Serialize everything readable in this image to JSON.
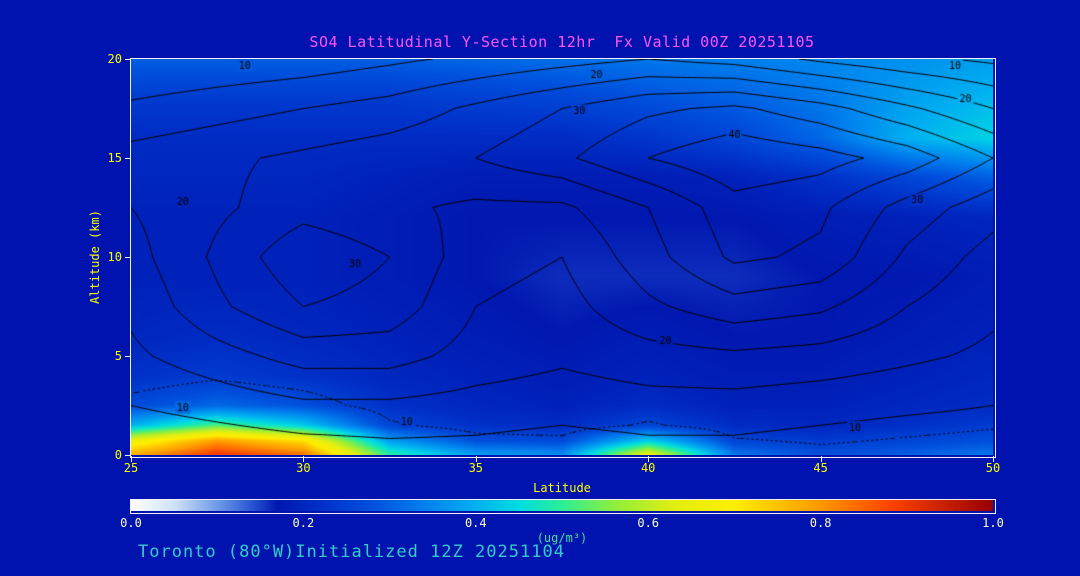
{
  "title": "SO4 Latitudinal Y-Section 12hr  Fx Valid 00Z 20251105",
  "caption": "Toronto (80°W)Initialized 12Z 20251104",
  "colors": {
    "background": "#0013ae",
    "title": "#ff55ff",
    "axis_label": "#ffff00",
    "frame": "#f2f2f2",
    "colorbar_tick_label": "#ffffcc",
    "units_label": "#44dd99",
    "caption": "#33cccc",
    "contour_line": "#000000"
  },
  "chart_data": {
    "type": "heatmap",
    "title": "SO4 Latitudinal Y-Section 12hr  Fx Valid 00Z 20251105",
    "xlabel": "Latitude",
    "ylabel": "Altitude (km)",
    "units_label": "(ug/m³)",
    "xlim": [
      25,
      50
    ],
    "ylim": [
      0,
      20
    ],
    "x_ticks": [
      25,
      30,
      35,
      40,
      45,
      50
    ],
    "y_ticks": [
      0,
      5,
      10,
      15,
      20
    ],
    "colorbar_ticks": [
      "0.0",
      "0.2",
      "0.4",
      "0.6",
      "0.8",
      "1.0"
    ],
    "colormap_stops": [
      [
        0.0,
        "#ffffff"
      ],
      [
        0.05,
        "#cfe2f6"
      ],
      [
        0.1,
        "#6f9ae8"
      ],
      [
        0.14,
        "#2a55d4"
      ],
      [
        0.17,
        "#0018b0"
      ],
      [
        0.22,
        "#0030c8"
      ],
      [
        0.28,
        "#0050dd"
      ],
      [
        0.34,
        "#0080ee"
      ],
      [
        0.4,
        "#00b0f0"
      ],
      [
        0.45,
        "#00dde0"
      ],
      [
        0.5,
        "#2cee96"
      ],
      [
        0.56,
        "#8fee3e"
      ],
      [
        0.63,
        "#e2ee12"
      ],
      [
        0.7,
        "#ffee00"
      ],
      [
        0.8,
        "#ff9900"
      ],
      [
        0.88,
        "#ff4400"
      ],
      [
        1.0,
        "#990000"
      ]
    ],
    "fill_grid": {
      "lats": [
        25,
        27.5,
        30,
        32.5,
        35,
        37.5,
        40,
        42.5,
        45,
        47.5,
        50
      ],
      "alts": [
        0,
        0.7,
        1.5,
        2.5,
        4,
        6,
        9,
        12,
        14,
        16,
        18,
        20
      ],
      "values": [
        [
          0.78,
          0.9,
          0.84,
          0.5,
          0.38,
          0.36,
          0.66,
          0.33,
          0.28,
          0.3,
          0.33
        ],
        [
          0.66,
          0.8,
          0.72,
          0.38,
          0.28,
          0.27,
          0.44,
          0.26,
          0.24,
          0.26,
          0.28
        ],
        [
          0.4,
          0.52,
          0.43,
          0.26,
          0.22,
          0.21,
          0.26,
          0.21,
          0.2,
          0.22,
          0.24
        ],
        [
          0.27,
          0.31,
          0.28,
          0.22,
          0.2,
          0.19,
          0.21,
          0.19,
          0.19,
          0.2,
          0.21
        ],
        [
          0.22,
          0.24,
          0.22,
          0.2,
          0.19,
          0.18,
          0.19,
          0.18,
          0.18,
          0.19,
          0.2
        ],
        [
          0.2,
          0.21,
          0.2,
          0.19,
          0.18,
          0.17,
          0.18,
          0.17,
          0.17,
          0.18,
          0.19
        ],
        [
          0.19,
          0.19,
          0.19,
          0.18,
          0.17,
          0.16,
          0.16,
          0.16,
          0.17,
          0.17,
          0.18
        ],
        [
          0.19,
          0.19,
          0.19,
          0.18,
          0.17,
          0.17,
          0.17,
          0.17,
          0.18,
          0.19,
          0.2
        ],
        [
          0.2,
          0.2,
          0.2,
          0.19,
          0.18,
          0.18,
          0.18,
          0.19,
          0.22,
          0.26,
          0.3
        ],
        [
          0.21,
          0.21,
          0.21,
          0.21,
          0.21,
          0.21,
          0.23,
          0.26,
          0.31,
          0.4,
          0.44
        ],
        [
          0.24,
          0.24,
          0.24,
          0.24,
          0.25,
          0.26,
          0.28,
          0.3,
          0.33,
          0.38,
          0.41
        ],
        [
          0.3,
          0.3,
          0.3,
          0.3,
          0.31,
          0.32,
          0.33,
          0.34,
          0.35,
          0.36,
          0.38
        ]
      ]
    },
    "surface_dotted_level": 0.25,
    "contour_levels": [
      10,
      15,
      20,
      25,
      30,
      35,
      40
    ],
    "contour_grid": {
      "lats": [
        25,
        27.5,
        30,
        32.5,
        35,
        37.5,
        40,
        42.5,
        45,
        47.5,
        50
      ],
      "alts": [
        0,
        2.5,
        5,
        7.5,
        10,
        12.5,
        15,
        17.5,
        20
      ],
      "values": [
        [
          5,
          6,
          7,
          8,
          8,
          7,
          8,
          8,
          7,
          6,
          6
        ],
        [
          10,
          12,
          14,
          14,
          13,
          12,
          13,
          13,
          12,
          11,
          10
        ],
        [
          14,
          18,
          22,
          22,
          18,
          16,
          18,
          19,
          18,
          16,
          14
        ],
        [
          16,
          24,
          30,
          28,
          20,
          18,
          24,
          28,
          26,
          20,
          16
        ],
        [
          18,
          26,
          34,
          30,
          22,
          20,
          28,
          36,
          34,
          24,
          18
        ],
        [
          20,
          24,
          28,
          26,
          24,
          24,
          30,
          38,
          36,
          28,
          22
        ],
        [
          22,
          24,
          26,
          28,
          30,
          34,
          40,
          44,
          42,
          38,
          30
        ],
        [
          16,
          18,
          20,
          22,
          26,
          30,
          34,
          36,
          32,
          26,
          20
        ],
        [
          10,
          11,
          12,
          14,
          16,
          18,
          20,
          18,
          14,
          11,
          9
        ]
      ]
    },
    "contour_labels": [
      {
        "text": "10",
        "lat": 28.3,
        "alt": 19.7
      },
      {
        "text": "20",
        "lat": 38.5,
        "alt": 19.2
      },
      {
        "text": "30",
        "lat": 38.0,
        "alt": 17.4
      },
      {
        "text": "40",
        "lat": 42.5,
        "alt": 16.2
      },
      {
        "text": "10",
        "lat": 48.9,
        "alt": 19.7
      },
      {
        "text": "20",
        "lat": 49.2,
        "alt": 18.0
      },
      {
        "text": "20",
        "lat": 26.5,
        "alt": 12.8
      },
      {
        "text": "30",
        "lat": 31.5,
        "alt": 9.7
      },
      {
        "text": "30",
        "lat": 47.8,
        "alt": 12.9
      },
      {
        "text": "20",
        "lat": 40.5,
        "alt": 5.8
      },
      {
        "text": "10",
        "lat": 33.0,
        "alt": 1.7
      },
      {
        "text": "10",
        "lat": 46.0,
        "alt": 1.4
      },
      {
        "text": "10",
        "lat": 26.5,
        "alt": 2.4
      }
    ]
  }
}
